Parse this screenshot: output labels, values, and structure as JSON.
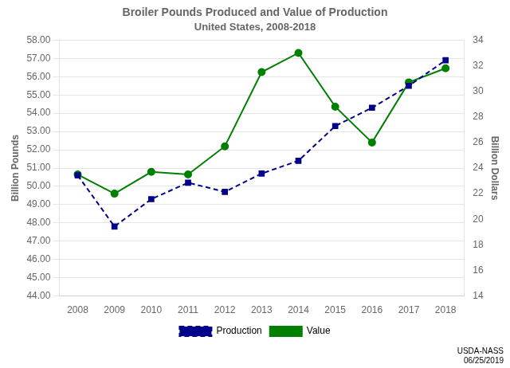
{
  "chart_data": {
    "type": "line",
    "title": "Broiler Pounds Produced and Value of Production",
    "subtitle": "United States, 2008-2018",
    "ylabel": "Billion Pounds",
    "y2label": "Billion Dollars",
    "annotation": "USDA-NASS\n06/25/2019",
    "x": [
      2008,
      2009,
      2010,
      2011,
      2012,
      2013,
      2014,
      2015,
      2016,
      2017,
      2018
    ],
    "xlim": [
      2007.5,
      2018.5
    ],
    "xticks": [
      2008,
      2009,
      2010,
      2011,
      2012,
      2013,
      2014,
      2015,
      2016,
      2017,
      2018
    ],
    "series": [
      {
        "name": "Production",
        "color": "#00008B",
        "line_style": "dashed",
        "marker": "square",
        "axis": "y",
        "values": [
          50.6,
          47.8,
          49.3,
          50.2,
          49.7,
          50.7,
          51.4,
          53.3,
          54.3,
          55.5,
          56.9
        ]
      },
      {
        "name": "Value",
        "color": "#008000",
        "line_style": "solid",
        "marker": "circle",
        "axis": "y2",
        "values": [
          23.5,
          22.0,
          23.7,
          23.5,
          25.7,
          31.5,
          33.0,
          28.8,
          26.0,
          30.7,
          31.8
        ]
      }
    ],
    "ylim": [
      44.0,
      58.0
    ],
    "yticks": [
      {
        "value": 44,
        "label": "44.00"
      },
      {
        "value": 45,
        "label": "45.00"
      },
      {
        "value": 46,
        "label": "46.00"
      },
      {
        "value": 47,
        "label": "47.00"
      },
      {
        "value": 48,
        "label": "48.00"
      },
      {
        "value": 49,
        "label": "49.00"
      },
      {
        "value": 50,
        "label": "50.00"
      },
      {
        "value": 51,
        "label": "51.00"
      },
      {
        "value": 52,
        "label": "52.00"
      },
      {
        "value": 53,
        "label": "53.00"
      },
      {
        "value": 54,
        "label": "54.00"
      },
      {
        "value": 55,
        "label": "55.00"
      },
      {
        "value": 56,
        "label": "56.00"
      },
      {
        "value": 57,
        "label": "57.00"
      },
      {
        "value": 58,
        "label": "58.00"
      }
    ],
    "y2lim": [
      14,
      34
    ],
    "y2ticks": [
      14,
      16,
      18,
      20,
      22,
      24,
      26,
      28,
      30,
      32,
      34
    ],
    "grid": true,
    "legend": "bottom"
  }
}
